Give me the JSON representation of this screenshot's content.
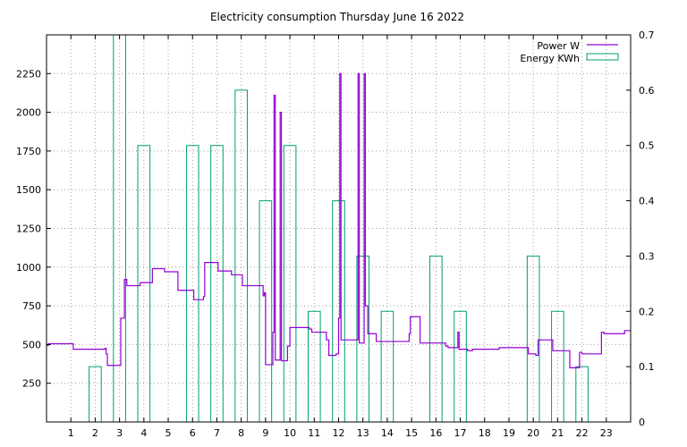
{
  "chart_data": {
    "type": "line",
    "title": "Electricity consumption Thursday June 16 2022",
    "grid": true,
    "legend_position": "top-right",
    "x_axis": {
      "range": [
        0,
        24
      ],
      "ticks": [
        1,
        2,
        3,
        4,
        5,
        6,
        7,
        8,
        9,
        10,
        11,
        12,
        13,
        14,
        15,
        16,
        17,
        18,
        19,
        20,
        21,
        22,
        23
      ]
    },
    "y_axis_left": {
      "range": [
        0,
        2500
      ],
      "ticks": [
        250,
        500,
        750,
        1000,
        1250,
        1500,
        1750,
        2000,
        2250
      ]
    },
    "y_axis_right": {
      "range": [
        0,
        0.7
      ],
      "ticks": [
        0,
        0.1,
        0.2,
        0.3,
        0.4,
        0.5,
        0.6,
        0.7
      ],
      "tick_labels": [
        "0",
        "0.1",
        "0.2",
        "0.3",
        "0.4",
        "0.5",
        "0.6",
        "0.7"
      ]
    },
    "series": [
      {
        "name": "Power W",
        "axis": "left",
        "color": "#9400d3",
        "step": true,
        "points": [
          [
            0,
            495
          ],
          [
            0.08,
            505
          ],
          [
            1.1,
            470
          ],
          [
            2.4,
            475
          ],
          [
            2.45,
            440
          ],
          [
            2.5,
            365
          ],
          [
            3.0,
            365
          ],
          [
            3.05,
            670
          ],
          [
            3.2,
            920
          ],
          [
            3.3,
            880
          ],
          [
            3.85,
            900
          ],
          [
            4.35,
            990
          ],
          [
            4.85,
            970
          ],
          [
            5.4,
            850
          ],
          [
            6.05,
            790
          ],
          [
            6.45,
            810
          ],
          [
            6.5,
            1030
          ],
          [
            7.05,
            975
          ],
          [
            7.6,
            950
          ],
          [
            8.05,
            880
          ],
          [
            8.9,
            815
          ],
          [
            8.95,
            835
          ],
          [
            9.0,
            370
          ],
          [
            9.3,
            580
          ],
          [
            9.35,
            2110
          ],
          [
            9.4,
            400
          ],
          [
            9.6,
            2000
          ],
          [
            9.65,
            395
          ],
          [
            9.9,
            490
          ],
          [
            10.0,
            610
          ],
          [
            10.8,
            600
          ],
          [
            10.9,
            580
          ],
          [
            11.5,
            530
          ],
          [
            11.6,
            430
          ],
          [
            11.9,
            440
          ],
          [
            12.0,
            670
          ],
          [
            12.05,
            2250
          ],
          [
            12.1,
            530
          ],
          [
            12.8,
            2250
          ],
          [
            12.85,
            510
          ],
          [
            13.05,
            2250
          ],
          [
            13.1,
            750
          ],
          [
            13.2,
            570
          ],
          [
            13.55,
            520
          ],
          [
            14.9,
            570
          ],
          [
            14.95,
            680
          ],
          [
            15.35,
            510
          ],
          [
            16.4,
            490
          ],
          [
            16.5,
            480
          ],
          [
            16.9,
            580
          ],
          [
            16.95,
            470
          ],
          [
            17.3,
            460
          ],
          [
            17.5,
            470
          ],
          [
            18.6,
            480
          ],
          [
            19.8,
            440
          ],
          [
            20.1,
            430
          ],
          [
            20.2,
            530
          ],
          [
            20.8,
            460
          ],
          [
            21.5,
            350
          ],
          [
            21.9,
            450
          ],
          [
            22.0,
            440
          ],
          [
            22.8,
            580
          ],
          [
            22.9,
            570
          ],
          [
            23.75,
            590
          ],
          [
            24,
            590
          ]
        ]
      },
      {
        "name": "Energy KWh",
        "axis": "right",
        "color": "#009e73",
        "style": "boxes",
        "boxes": [
          [
            2.0,
            0.1
          ],
          [
            3.0,
            0.72
          ],
          [
            4.0,
            0.5
          ],
          [
            6.0,
            0.5
          ],
          [
            7.0,
            0.5
          ],
          [
            8.0,
            0.6
          ],
          [
            9.0,
            0.4
          ],
          [
            10.0,
            0.5
          ],
          [
            11.0,
            0.2
          ],
          [
            12.0,
            0.4
          ],
          [
            13.0,
            0.3
          ],
          [
            14.0,
            0.2
          ],
          [
            16.0,
            0.3
          ],
          [
            17.0,
            0.2
          ],
          [
            20.0,
            0.3
          ],
          [
            21.0,
            0.2
          ],
          [
            22.0,
            0.1
          ]
        ]
      }
    ]
  }
}
